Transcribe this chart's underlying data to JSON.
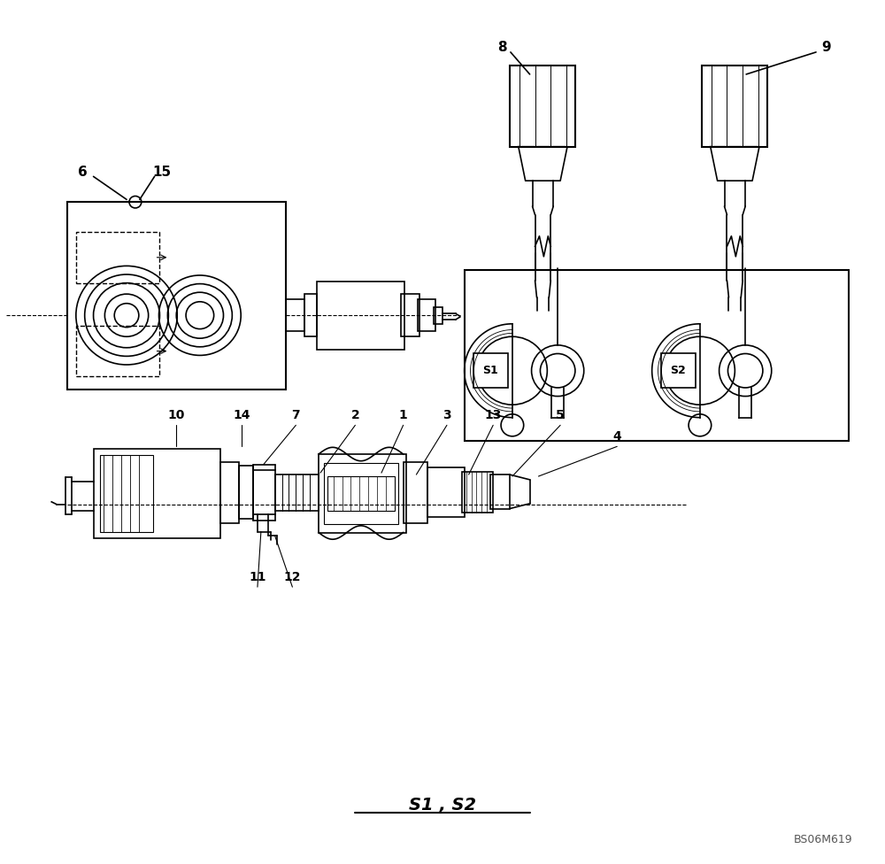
{
  "bg_color": "#ffffff",
  "line_color": "#000000",
  "fig_width": 10.0,
  "fig_height": 9.76,
  "title_text": "S1 , S2",
  "watermark": "BS06M619"
}
